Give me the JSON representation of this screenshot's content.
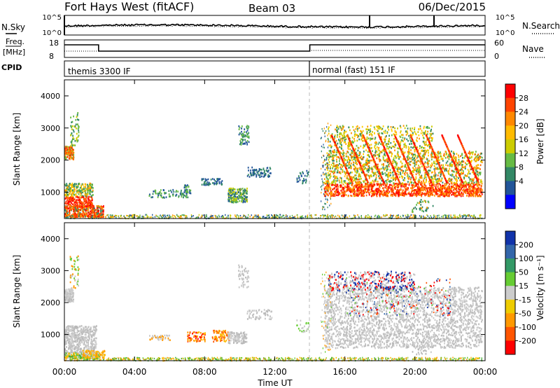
{
  "header": {
    "station": "Fort Hays West (fitACF)",
    "beam": "Beam 03",
    "date": "06/Dec/2015"
  },
  "panels": {
    "noise": {
      "left_label": "N.Sky",
      "right_label": "N.Search",
      "left_ticks": [
        "10^5",
        "10^0"
      ],
      "right_ticks": [
        "10^5",
        "10^0"
      ]
    },
    "freq": {
      "left_label_1": "Freq.",
      "left_label_2": "[MHz]",
      "right_label": "Nave",
      "left_ticks": [
        "18",
        "8"
      ],
      "right_ticks": [
        "60",
        "0"
      ]
    },
    "cpid": {
      "label": "CPID",
      "modes": [
        "themis 3300 IF",
        "normal (fast) 151 IF"
      ]
    }
  },
  "colorbars": {
    "power": {
      "label": "Power [dB]",
      "ticks": [
        "28",
        "24",
        "20",
        "16",
        "12",
        "8",
        "4"
      ],
      "colors": [
        "#ff0000",
        "#ff4400",
        "#ff8800",
        "#ffbb00",
        "#cccc00",
        "#66bb44",
        "#338866",
        "#225599",
        "#0000ff"
      ]
    },
    "velocity": {
      "label": "Velocity [m s⁻¹]",
      "ticks": [
        "200",
        "100",
        "50",
        "15",
        "-15",
        "-50",
        "-100",
        "-200"
      ],
      "colors": [
        "#1133aa",
        "#3366aa",
        "#339966",
        "#66cc33",
        "#cccccc",
        "#eecc00",
        "#ff9900",
        "#ff5500",
        "#ff0000"
      ]
    }
  },
  "chart_data": [
    {
      "type": "heatmap",
      "title": "Power",
      "ylabel": "Slant Range [km]",
      "y_ticks": [
        1000,
        2000,
        3000,
        4000
      ],
      "ylim": [
        180,
        4500
      ],
      "xlim": [
        0,
        24
      ],
      "mode_change_hour": 14.0,
      "regions": [
        {
          "t": [
            0.0,
            0.5
          ],
          "r": [
            2050,
            2450
          ],
          "level": "orange"
        },
        {
          "t": [
            0.0,
            1.6
          ],
          "r": [
            550,
            1300
          ],
          "level": "mixed"
        },
        {
          "t": [
            0.0,
            2.2
          ],
          "r": [
            250,
            600
          ],
          "level": "red"
        },
        {
          "t": [
            9.4,
            10.4
          ],
          "r": [
            700,
            1150
          ],
          "level": "green"
        },
        {
          "t": [
            14.8,
            23.8
          ],
          "r": [
            900,
            3000
          ],
          "level": "red"
        }
      ]
    },
    {
      "type": "heatmap",
      "title": "Velocity",
      "ylabel": "Slant Range [km]",
      "y_ticks": [
        1000,
        2000,
        3000,
        4000
      ],
      "ylim": [
        180,
        4500
      ],
      "xlim": [
        0,
        24
      ],
      "x_ticks": [
        "00:00",
        "04:00",
        "08:00",
        "12:00",
        "16:00",
        "20:00",
        "00:00"
      ],
      "xlabel": "Time UT",
      "mode_change_hour": 14.0,
      "regions": [
        {
          "t": [
            0.0,
            2.0
          ],
          "r": [
            300,
            1300
          ],
          "level": "grey"
        },
        {
          "t": [
            7.0,
            8.0
          ],
          "r": [
            800,
            1100
          ],
          "level": "orange"
        },
        {
          "t": [
            14.8,
            23.8
          ],
          "r": [
            600,
            3000
          ],
          "level": "grey"
        }
      ]
    }
  ]
}
